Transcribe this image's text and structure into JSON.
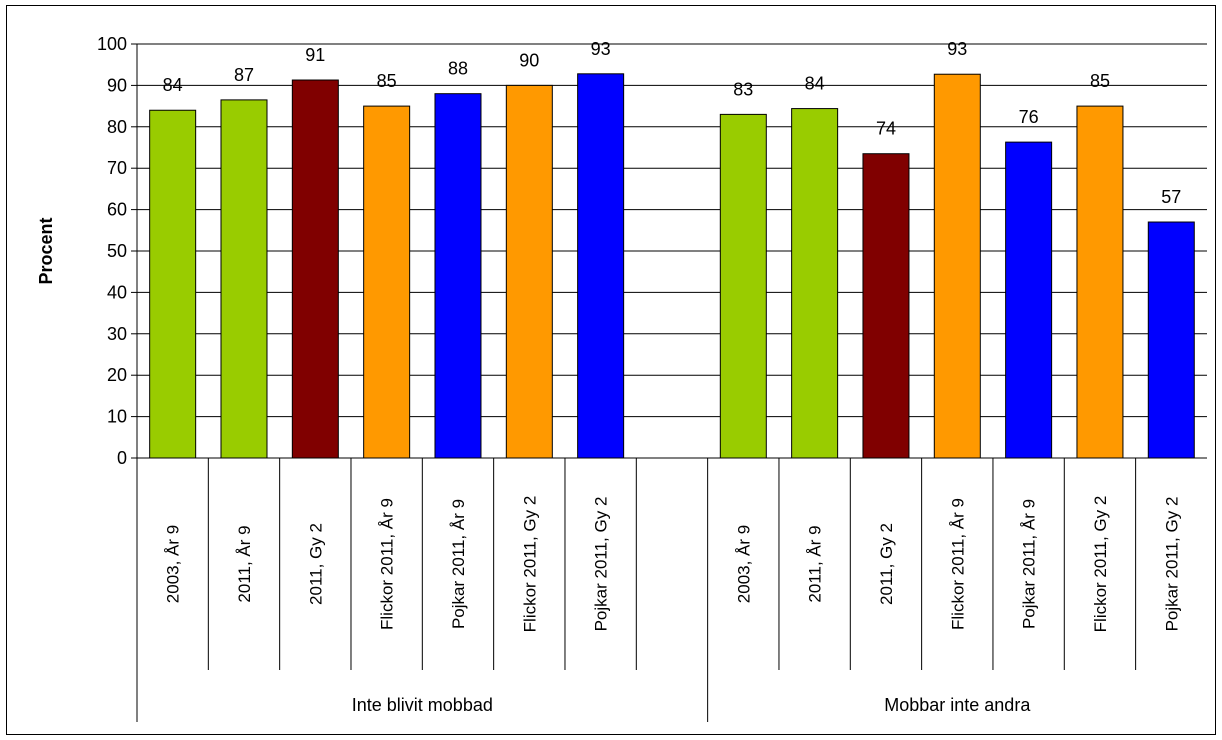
{
  "chart_data": {
    "type": "bar",
    "ylabel": "Procent",
    "ylim": [
      0,
      100
    ],
    "yticks": [
      0,
      10,
      20,
      30,
      40,
      50,
      60,
      70,
      80,
      90,
      100
    ],
    "grid": true,
    "legend": "none",
    "colors": {
      "ar9": "#99cc00",
      "gy2": "#800000",
      "flickor": "#ff9900",
      "pojkar": "#0000ff"
    },
    "groups": [
      {
        "label": "Inte blivit mobbad",
        "bars": [
          {
            "category": "2003, År 9",
            "value": 84,
            "label": "84",
            "color": "#99cc00"
          },
          {
            "category": "2011, År 9",
            "value": 86.5,
            "label": "87",
            "color": "#99cc00"
          },
          {
            "category": "2011, Gy 2",
            "value": 91.3,
            "label": "91",
            "color": "#800000"
          },
          {
            "category": "Flickor 2011, År 9",
            "value": 85,
            "label": "85",
            "color": "#ff9900"
          },
          {
            "category": "Pojkar 2011, År 9",
            "value": 88,
            "label": "88",
            "color": "#0000ff"
          },
          {
            "category": "Flickor 2011, Gy 2",
            "value": 90,
            "label": "90",
            "color": "#ff9900"
          },
          {
            "category": "Pojkar 2011, Gy 2",
            "value": 92.8,
            "label": "93",
            "color": "#0000ff"
          }
        ]
      },
      {
        "label": "Mobbar inte andra",
        "bars": [
          {
            "category": "2003, År 9",
            "value": 83,
            "label": "83",
            "color": "#99cc00"
          },
          {
            "category": "2011, År 9",
            "value": 84.4,
            "label": "84",
            "color": "#99cc00"
          },
          {
            "category": "2011, Gy 2",
            "value": 73.5,
            "label": "74",
            "color": "#800000"
          },
          {
            "category": "Flickor 2011, År 9",
            "value": 92.7,
            "label": "93",
            "color": "#ff9900"
          },
          {
            "category": "Pojkar 2011, År 9",
            "value": 76.3,
            "label": "76",
            "color": "#0000ff"
          },
          {
            "category": "Flickor 2011, Gy 2",
            "value": 85,
            "label": "85",
            "color": "#ff9900"
          },
          {
            "category": "Pojkar 2011, Gy 2",
            "value": 57,
            "label": "57",
            "color": "#0000ff"
          }
        ]
      }
    ]
  }
}
